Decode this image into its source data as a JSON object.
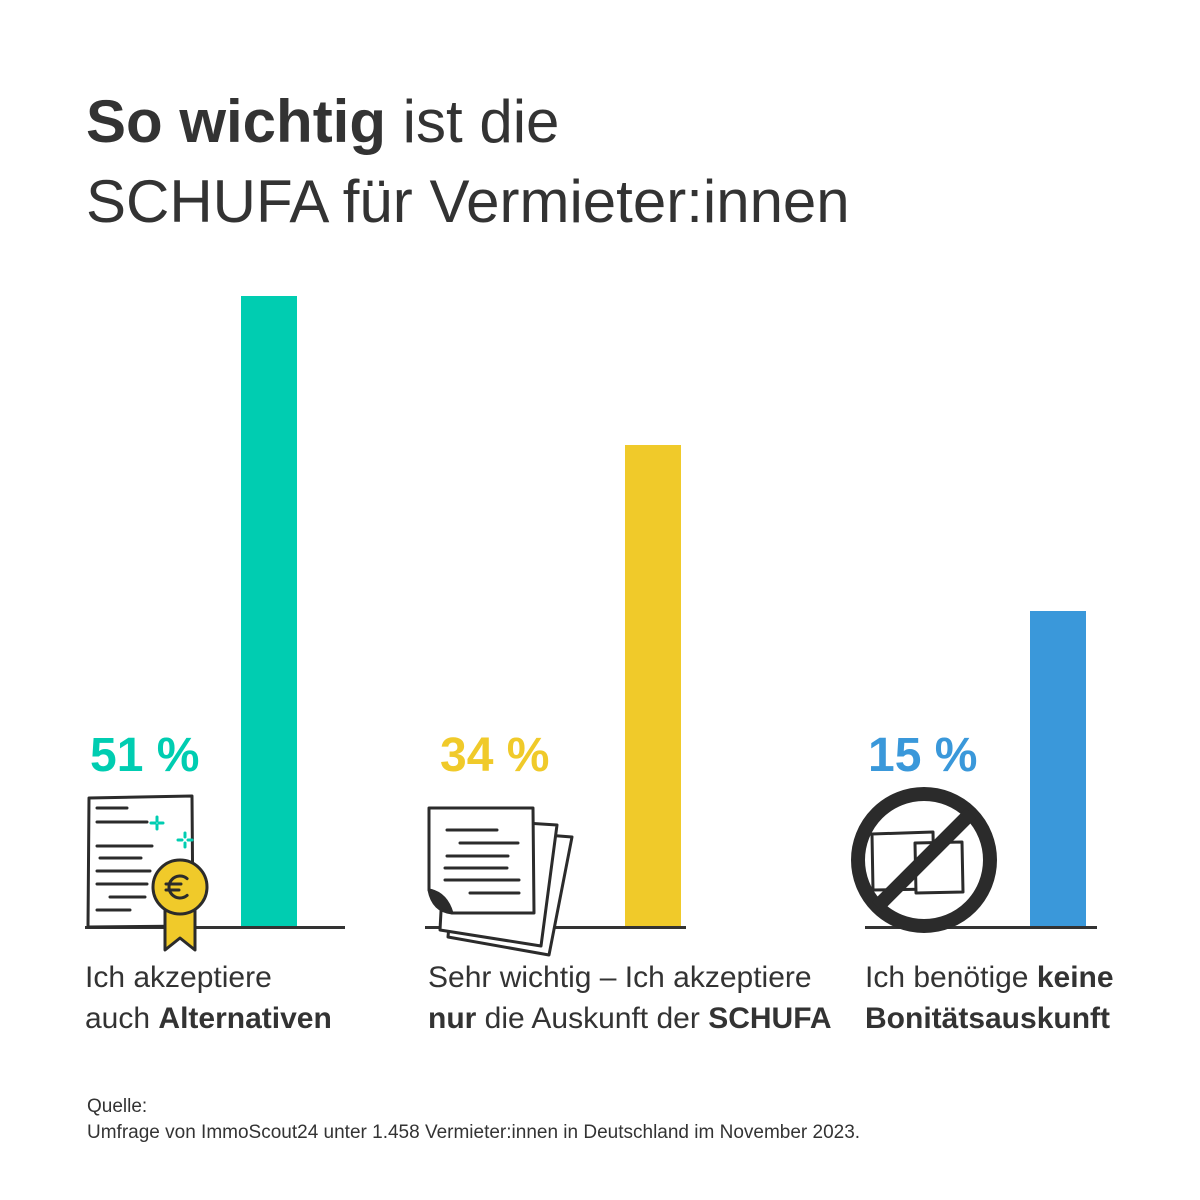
{
  "chart_data": {
    "type": "bar",
    "title": "So wichtig ist die SCHUFA für Vermieter:innen",
    "title_emphasis": [
      "So wichtig"
    ],
    "categories": [
      "Ich akzeptiere auch Alternativen",
      "Sehr wichtig – Ich akzeptiere nur die Auskunft der SCHUFA",
      "Ich benötige keine Bonitätsauskunft"
    ],
    "category_emphasis": [
      [
        "Alternativen"
      ],
      [
        "nur",
        "SCHUFA"
      ],
      [
        "keine",
        "Bonitätsauskunft"
      ]
    ],
    "values": [
      51,
      34,
      15
    ],
    "data_labels": [
      "51 %",
      "34 %",
      "15 %"
    ],
    "colors": [
      "#00CDB1",
      "#F0CA2A",
      "#3A98DA"
    ],
    "grid": false
  },
  "icons": [
    "certificate-euro-icon",
    "document-stack-icon",
    "no-documents-icon"
  ],
  "source": {
    "label": "Quelle:",
    "text": "Umfrage von ImmoScout24 unter 1.458 Vermieter:innen in Deutschland im November 2023."
  },
  "text_color": "#333333"
}
